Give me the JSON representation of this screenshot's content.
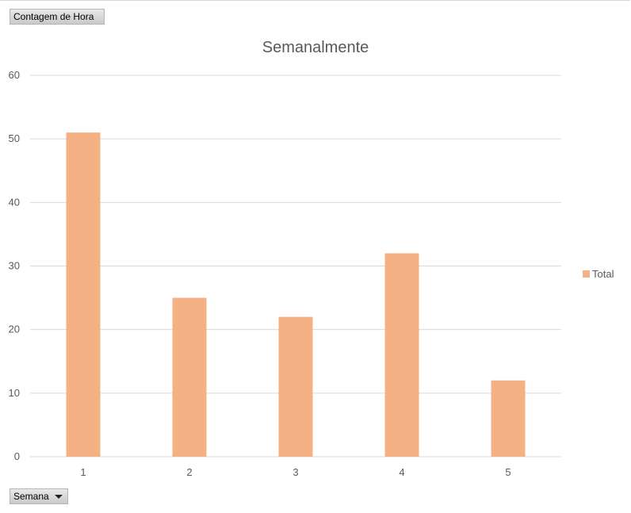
{
  "pivot": {
    "values_field": "Contagem  de Hora",
    "axis_field": "Semana"
  },
  "colors": {
    "bar": "#F4B183",
    "gridline": "#d9d9d9",
    "text": "#595959"
  },
  "chart_data": {
    "type": "bar",
    "title": "Semanalmente",
    "categories": [
      "1",
      "2",
      "3",
      "4",
      "5"
    ],
    "series": [
      {
        "name": "Total",
        "values": [
          51,
          25,
          22,
          32,
          12
        ]
      }
    ],
    "xlabel": "",
    "ylabel": "",
    "ylim": [
      0,
      60
    ],
    "yticks": [
      0,
      10,
      20,
      30,
      40,
      50,
      60
    ],
    "grid": true,
    "legend_position": "right"
  }
}
